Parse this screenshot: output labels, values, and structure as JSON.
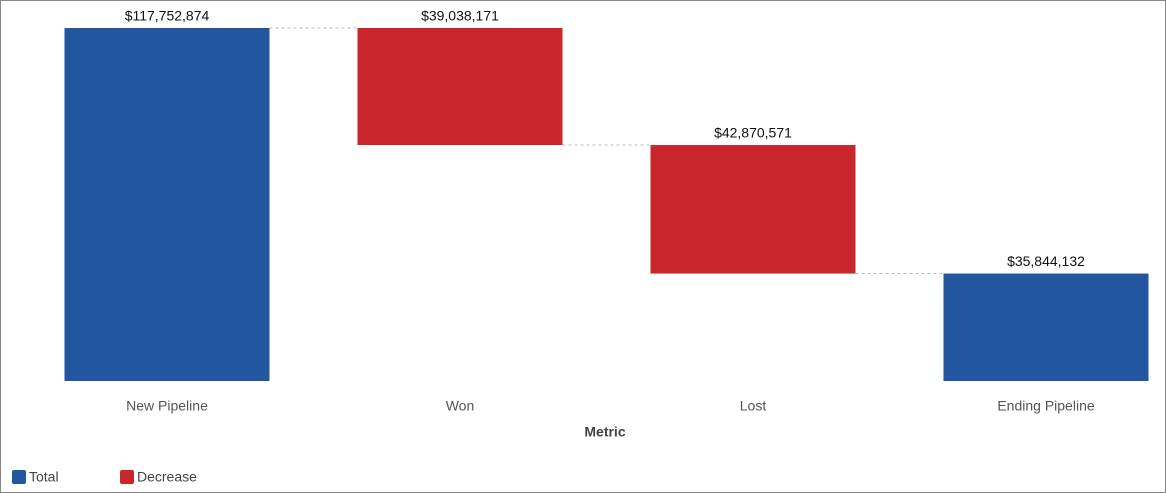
{
  "chart_data": {
    "type": "waterfall",
    "x_label": "Metric",
    "categories": [
      "New Pipeline",
      "Won",
      "Lost",
      "Ending Pipeline"
    ],
    "series": [
      {
        "name": "Total",
        "color": "#22569f",
        "values": [
          117752874,
          null,
          null,
          35844132
        ],
        "value_labels": [
          "$117,752,874",
          null,
          null,
          "$35,844,132"
        ]
      },
      {
        "name": "Decrease",
        "color": "#c8262b",
        "values": [
          null,
          39038171,
          42870571,
          null
        ],
        "value_labels": [
          null,
          "$39,038,171",
          "$42,870,571",
          null
        ]
      }
    ]
  }
}
